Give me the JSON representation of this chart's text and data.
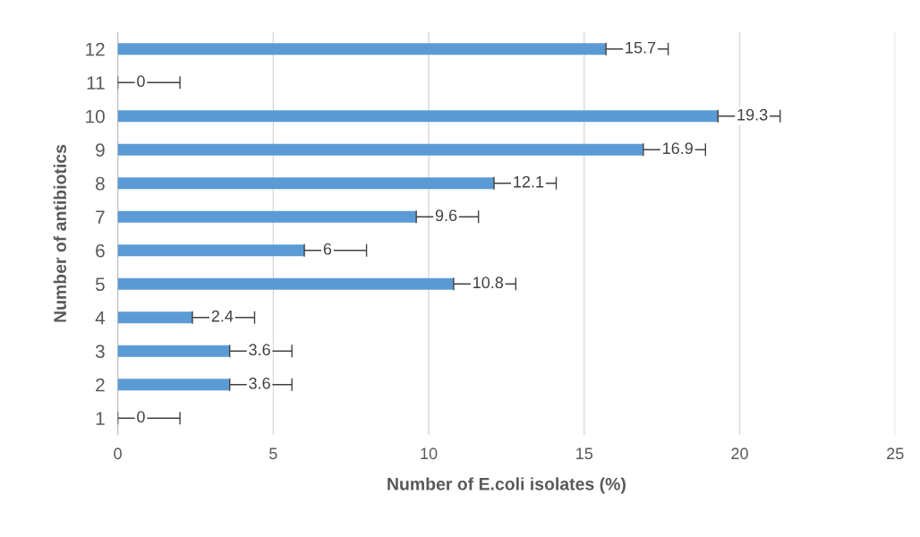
{
  "chart_data": {
    "type": "bar",
    "orientation": "horizontal",
    "xlabel": "Number of E.coli isolates (%)",
    "ylabel": "Number of antibiotics",
    "categories": [
      "12",
      "11",
      "10",
      "9",
      "8",
      "7",
      "6",
      "5",
      "4",
      "3",
      "2",
      "1"
    ],
    "values": [
      15.7,
      0,
      19.3,
      16.9,
      12.1,
      9.6,
      6,
      10.8,
      2.4,
      3.6,
      3.6,
      0
    ],
    "errors": [
      [
        15.7,
        17.7
      ],
      [
        0,
        2
      ],
      [
        19.3,
        21.3
      ],
      [
        16.9,
        18.9
      ],
      [
        12.1,
        14.1
      ],
      [
        9.6,
        11.6
      ],
      [
        6,
        8
      ],
      [
        10.8,
        12.8
      ],
      [
        2.4,
        4.4
      ],
      [
        3.6,
        5.6
      ],
      [
        3.6,
        5.6
      ],
      [
        0,
        2
      ]
    ],
    "color": "#5b9bd5",
    "xlim": [
      0,
      25
    ],
    "xticks": [
      0,
      5,
      10,
      15,
      20,
      25
    ],
    "grid": "x",
    "data_labels": true
  }
}
